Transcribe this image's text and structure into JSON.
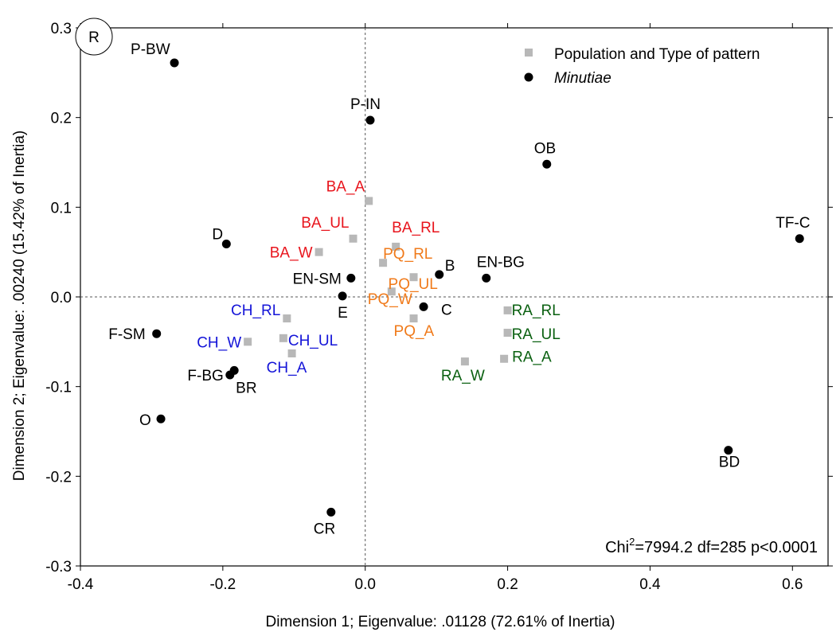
{
  "chart_data": {
    "type": "scatter",
    "title": "",
    "xlabel": "Dimension 1; Eigenvalue: .01128 (72.61% of Inertia)",
    "ylabel": "Dimension 2; Eigenvalue: .00240 (15.42% of Inertia)",
    "xlim": [
      -0.4,
      0.65
    ],
    "ylim": [
      -0.3,
      0.3
    ],
    "xticks": [
      "-0.4",
      "-0.2",
      "0.0",
      "0.2",
      "0.4",
      "0.6"
    ],
    "yticks": [
      "0.3",
      "0.2",
      "0.1",
      "0.0",
      "-0.1",
      "-0.2",
      "-0.3"
    ],
    "corner_label": "R",
    "legend": {
      "position": "top-right",
      "entries": [
        {
          "name": "Population and Type of pattern",
          "marker": "square",
          "italic": false
        },
        {
          "name": "Minutiae",
          "marker": "circle",
          "italic": true
        }
      ]
    },
    "annotation": {
      "prefix": "Chi",
      "sup": "2",
      "rest": "=7994.2 df=285 p<0.0001"
    },
    "colors": {
      "BA": "#e8141c",
      "PQ": "#f07a1a",
      "CH": "#1414d8",
      "RA": "#0a6010",
      "minutiae": "#000000",
      "square": "#b8b8b8"
    },
    "series": [
      {
        "name": "Population and Type of pattern",
        "points": [
          {
            "label": "BA_A",
            "x": 0.005,
            "y": 0.107,
            "group": "BA"
          },
          {
            "label": "BA_UL",
            "x": -0.017,
            "y": 0.065,
            "group": "BA"
          },
          {
            "label": "BA_RL",
            "x": 0.043,
            "y": 0.056,
            "group": "BA"
          },
          {
            "label": "BA_W",
            "x": -0.065,
            "y": 0.05,
            "group": "BA"
          },
          {
            "label": "PQ_RL",
            "x": 0.025,
            "y": 0.038,
            "group": "PQ"
          },
          {
            "label": "PQ_UL",
            "x": 0.068,
            "y": 0.022,
            "group": "PQ"
          },
          {
            "label": "PQ_W",
            "x": 0.037,
            "y": 0.006,
            "group": "PQ"
          },
          {
            "label": "PQ_A",
            "x": 0.068,
            "y": -0.024,
            "group": "PQ"
          },
          {
            "label": "CH_RL",
            "x": -0.11,
            "y": -0.024,
            "group": "CH"
          },
          {
            "label": "CH_UL",
            "x": -0.115,
            "y": -0.046,
            "group": "CH"
          },
          {
            "label": "CH_W",
            "x": -0.165,
            "y": -0.05,
            "group": "CH"
          },
          {
            "label": "CH_A",
            "x": -0.103,
            "y": -0.063,
            "group": "CH"
          },
          {
            "label": "RA_RL",
            "x": 0.2,
            "y": -0.015,
            "group": "RA"
          },
          {
            "label": "RA_UL",
            "x": 0.2,
            "y": -0.04,
            "group": "RA"
          },
          {
            "label": "RA_A",
            "x": 0.195,
            "y": -0.069,
            "group": "RA"
          },
          {
            "label": "RA_W",
            "x": 0.14,
            "y": -0.072,
            "group": "RA"
          }
        ]
      },
      {
        "name": "Minutiae",
        "points": [
          {
            "label": "P-BW",
            "x": -0.268,
            "y": 0.261
          },
          {
            "label": "P-IN",
            "x": 0.007,
            "y": 0.197
          },
          {
            "label": "OB",
            "x": 0.255,
            "y": 0.148
          },
          {
            "label": "TF-C",
            "x": 0.61,
            "y": 0.065
          },
          {
            "label": "D",
            "x": -0.195,
            "y": 0.059
          },
          {
            "label": "EN-SM",
            "x": -0.02,
            "y": 0.021
          },
          {
            "label": "B",
            "x": 0.104,
            "y": 0.025
          },
          {
            "label": "EN-BG",
            "x": 0.17,
            "y": 0.021
          },
          {
            "label": "E",
            "x": -0.032,
            "y": 0.001
          },
          {
            "label": "C",
            "x": 0.082,
            "y": -0.011
          },
          {
            "label": "F-SM",
            "x": -0.293,
            "y": -0.041
          },
          {
            "label": "F-BG",
            "x": -0.19,
            "y": -0.087
          },
          {
            "label": "BR",
            "x": -0.184,
            "y": -0.082
          },
          {
            "label": "O",
            "x": -0.287,
            "y": -0.136
          },
          {
            "label": "BD",
            "x": 0.51,
            "y": -0.171
          },
          {
            "label": "CR",
            "x": -0.048,
            "y": -0.24
          }
        ]
      }
    ]
  }
}
